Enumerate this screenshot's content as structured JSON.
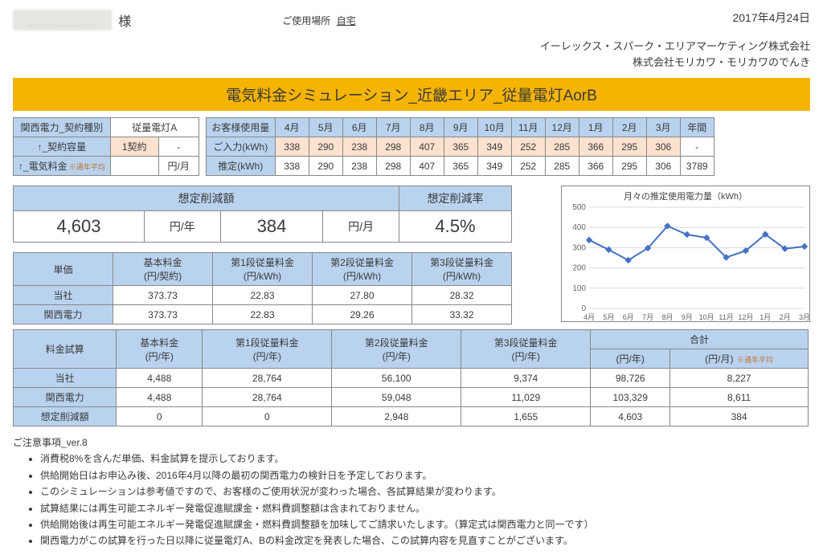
{
  "date": "2017年4月24日",
  "customer_name_blur": "________",
  "honorific": "様",
  "location_label": "ご使用場所",
  "location_value": "自宅",
  "company1": "イーレックス・スパーク・エリアマーケティング株式会社",
  "company2": "株式会社モリカワ・モリカワのでんき",
  "title": "電気料金シミュレーション_近畿エリア_従量電灯AorB",
  "contract": {
    "h_title": "関西電力_契約種別",
    "h_val": "従量電灯A",
    "r1_label": "↑_契約容量",
    "r1_val": "1契約",
    "r1_unit": "-",
    "r2_label": "↑_電気料金",
    "r2_note": "※通年平均",
    "r2_val": "",
    "r2_unit": "円/月"
  },
  "usage": {
    "row0": [
      "お客様使用量",
      "4月",
      "5月",
      "6月",
      "7月",
      "8月",
      "9月",
      "10月",
      "11月",
      "12月",
      "1月",
      "2月",
      "3月",
      "年間"
    ],
    "row1": [
      "ご入力(kWh)",
      "338",
      "290",
      "238",
      "298",
      "407",
      "365",
      "349",
      "252",
      "285",
      "366",
      "295",
      "306",
      "-"
    ],
    "row2": [
      "推定(kWh)",
      "338",
      "290",
      "238",
      "298",
      "407",
      "365",
      "349",
      "252",
      "285",
      "366",
      "295",
      "306",
      "3789"
    ],
    "highlight_cols": [
      1,
      2,
      3,
      4,
      5,
      6,
      7,
      8,
      9,
      10,
      11,
      12
    ]
  },
  "savings": {
    "h1": "想定削減額",
    "h2": "想定削減率",
    "v_year": "4,603",
    "u_year": "円/年",
    "v_month": "384",
    "u_month": "円/月",
    "v_rate": "4.5%"
  },
  "chart": {
    "title": "月々の推定使用電力量（kWh）",
    "labels": [
      "4月",
      "5月",
      "6月",
      "7月",
      "8月",
      "9月",
      "10月",
      "11月",
      "12月",
      "1月",
      "2月",
      "3月"
    ],
    "values": [
      338,
      290,
      238,
      298,
      407,
      365,
      349,
      252,
      285,
      366,
      295,
      306
    ],
    "ylim": [
      0,
      500
    ],
    "ytick_step": 100,
    "line_color": "#4472c4",
    "marker_color": "#4472c4",
    "grid_color": "#d9d9d9",
    "axis_color": "#888888",
    "background": "#ffffff",
    "font_size": 10
  },
  "unit_price": {
    "head": [
      "単価",
      "基本料金\n(円/契約)",
      "第1段従量料金\n(円/kWh)",
      "第2段従量料金\n(円/kWh)",
      "第3段従量料金\n(円/kWh)"
    ],
    "r1": [
      "当社",
      "373.73",
      "22.83",
      "27.80",
      "28.32"
    ],
    "r2": [
      "関西電力",
      "373.73",
      "22.83",
      "29.26",
      "33.32"
    ]
  },
  "calc": {
    "head": [
      "料金試算",
      "基本料金\n(円/年)",
      "第1段従量料金\n(円/年)",
      "第2段従量料金\n(円/年)",
      "第3段従量料金\n(円/年)",
      "合計"
    ],
    "sub_total": [
      "(円/年)",
      "(円/月)"
    ],
    "sub_note": "※通年平均",
    "r1": [
      "当社",
      "4,488",
      "28,764",
      "56,100",
      "9,374",
      "98,726",
      "8,227"
    ],
    "r2": [
      "関西電力",
      "4,488",
      "28,764",
      "59,048",
      "11,029",
      "103,329",
      "8,611"
    ],
    "r3": [
      "想定削減額",
      "0",
      "0",
      "2,948",
      "1,655",
      "4,603",
      "384"
    ]
  },
  "notes_title": "ご注意事項_ver.8",
  "notes": [
    "消費税8%を含んだ単価、料金試算を提示しております。",
    "供給開始日はお申込み後、2016年4月以降の最初の関西電力の検針日を予定しております。",
    "このシミュレーションは参考値ですので、お客様のご使用状況が変わった場合、各試算結果が変わります。",
    "試算結果には再生可能エネルギー発電促進賦課金・燃料費調整額は含まれておりません。",
    "供給開始後は再生可能エネルギー発電促進賦課金・燃料費調整額を加味してご請求いたします。（算定式は関西電力と同一です）",
    "関西電力がこの試算を行った日以降に従量電灯A、Bの料金改定を発表した場合、この試算内容を見直すことがございます。"
  ]
}
